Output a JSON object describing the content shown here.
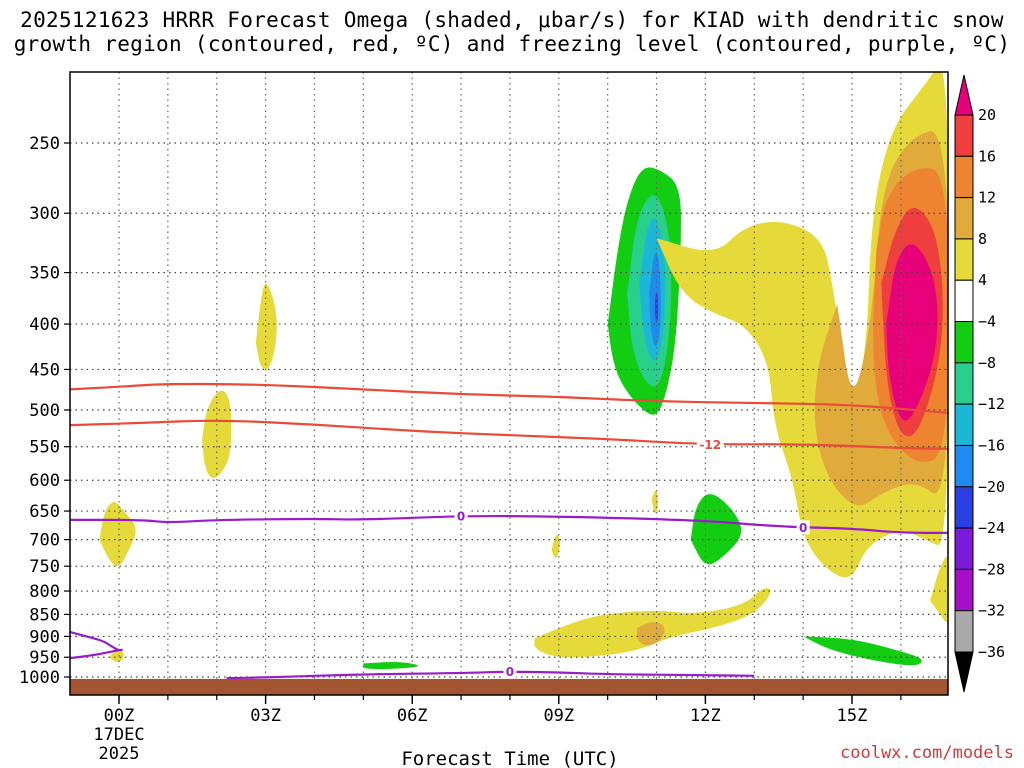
{
  "chart_data": {
    "type": "heatmap",
    "title_line1": "2025121623 HRRR Forecast Omega (shaded, μbar/s) for KIAD with dendritic snow",
    "title_line2": "growth region (contoured, red, ºC) and freezing level (contoured, purple, ºC)",
    "xlabel": "Forecast Time (UTC)",
    "ylabel": "",
    "credit": "coolwx.com/models",
    "x_ticks": [
      "00Z",
      "03Z",
      "06Z",
      "09Z",
      "12Z",
      "15Z"
    ],
    "x_ticks_hours": [
      0,
      3,
      6,
      9,
      12,
      15
    ],
    "x_first_date": "17DEC",
    "x_first_year": "2025",
    "xlim_hours": [
      -1,
      17
    ],
    "y_ticks": [
      "250",
      "300",
      "350",
      "400",
      "450",
      "500",
      "550",
      "600",
      "650",
      "700",
      "750",
      "800",
      "850",
      "900",
      "950",
      "1000"
    ],
    "y_ticks_hpa": [
      250,
      300,
      350,
      400,
      450,
      500,
      550,
      600,
      650,
      700,
      750,
      800,
      850,
      900,
      950,
      1000
    ],
    "ylim_hpa": [
      200,
      1025
    ],
    "y_scale": "log-pressure",
    "grid": true,
    "colorbar": {
      "labels": [
        "20",
        "16",
        "12",
        "8",
        "4",
        "−4",
        "−8",
        "−12",
        "−16",
        "−20",
        "−24",
        "−28",
        "−32",
        "−36"
      ],
      "levels": [
        20,
        16,
        12,
        8,
        4,
        -4,
        -8,
        -12,
        -16,
        -20,
        -24,
        -28,
        -32,
        -36
      ],
      "colors": [
        "#e8007a",
        "#ee3e3e",
        "#ee8430",
        "#e1ab3b",
        "#e6d93a",
        "#ffffff",
        "#13cd13",
        "#2bcf8c",
        "#1cb7d6",
        "#1f8bf0",
        "#2a3fe0",
        "#7b1ad8",
        "#a50fc9",
        "#aaaaaa",
        "#000000"
      ]
    },
    "omega_regions": [
      {
        "color": "#13cd13",
        "value": -8,
        "points": [
          [
            10.0,
            400
          ],
          [
            10.2,
            330
          ],
          [
            10.4,
            290
          ],
          [
            10.7,
            265
          ],
          [
            11.1,
            268
          ],
          [
            11.5,
            280
          ],
          [
            11.5,
            330
          ],
          [
            11.4,
            420
          ],
          [
            11.2,
            480
          ],
          [
            11.0,
            510
          ],
          [
            10.7,
            500
          ],
          [
            10.3,
            470
          ],
          [
            10.1,
            440
          ]
        ]
      },
      {
        "color": "#2bcf8c",
        "value": -12,
        "points": [
          [
            10.4,
            370
          ],
          [
            10.6,
            300
          ],
          [
            11.0,
            280
          ],
          [
            11.3,
            320
          ],
          [
            11.3,
            400
          ],
          [
            11.1,
            470
          ],
          [
            10.8,
            470
          ],
          [
            10.5,
            430
          ]
        ]
      },
      {
        "color": "#1cb7d6",
        "value": -16,
        "points": [
          [
            10.65,
            360
          ],
          [
            10.8,
            310
          ],
          [
            11.0,
            300
          ],
          [
            11.2,
            340
          ],
          [
            11.15,
            410
          ],
          [
            11.0,
            445
          ],
          [
            10.8,
            430
          ],
          [
            10.7,
            395
          ]
        ]
      },
      {
        "color": "#1f8bf0",
        "value": -20,
        "points": [
          [
            10.85,
            370
          ],
          [
            10.95,
            330
          ],
          [
            11.05,
            335
          ],
          [
            11.1,
            380
          ],
          [
            11.05,
            420
          ],
          [
            10.95,
            425
          ],
          [
            10.87,
            400
          ]
        ]
      },
      {
        "color": "#2a3fe0",
        "value": -24,
        "points": [
          [
            10.97,
            375
          ],
          [
            11.0,
            365
          ],
          [
            11.03,
            375
          ],
          [
            11.03,
            395
          ],
          [
            11.0,
            400
          ],
          [
            10.97,
            392
          ]
        ]
      },
      {
        "color": "#e6d93a",
        "value": 4,
        "points": [
          [
            11.0,
            320
          ],
          [
            12.2,
            335
          ],
          [
            12.8,
            310
          ],
          [
            13.6,
            305
          ],
          [
            14.4,
            320
          ],
          [
            14.6,
            360
          ],
          [
            15.0,
            500
          ],
          [
            15.3,
            430
          ],
          [
            15.4,
            300
          ],
          [
            15.8,
            240
          ],
          [
            16.5,
            215
          ],
          [
            17.0,
            195
          ],
          [
            17.0,
            720
          ],
          [
            16.5,
            700
          ],
          [
            16.0,
            680
          ],
          [
            15.3,
            710
          ],
          [
            15.0,
            780
          ],
          [
            14.5,
            760
          ],
          [
            14.0,
            700
          ],
          [
            13.8,
            600
          ],
          [
            13.4,
            520
          ],
          [
            13.3,
            440
          ],
          [
            12.8,
            400
          ],
          [
            12.2,
            390
          ],
          [
            11.5,
            370
          ]
        ]
      },
      {
        "color": "#e1ab3b",
        "value": 8,
        "points": [
          [
            14.7,
            380
          ],
          [
            15.0,
            500
          ],
          [
            15.4,
            400
          ],
          [
            15.6,
            280
          ],
          [
            16.2,
            245
          ],
          [
            17.0,
            240
          ],
          [
            17.0,
            640
          ],
          [
            16.3,
            600
          ],
          [
            15.6,
            620
          ],
          [
            15.1,
            650
          ],
          [
            14.5,
            600
          ],
          [
            14.2,
            520
          ],
          [
            14.3,
            440
          ]
        ]
      },
      {
        "color": "#ee8430",
        "value": 12,
        "points": [
          [
            15.5,
            330
          ],
          [
            15.7,
            285
          ],
          [
            16.3,
            265
          ],
          [
            17.0,
            270
          ],
          [
            17.0,
            560
          ],
          [
            16.3,
            580
          ],
          [
            15.6,
            520
          ],
          [
            15.4,
            430
          ]
        ]
      },
      {
        "color": "#ee3e3e",
        "value": 16,
        "points": [
          [
            15.6,
            360
          ],
          [
            15.9,
            310
          ],
          [
            16.3,
            290
          ],
          [
            16.8,
            320
          ],
          [
            16.9,
            420
          ],
          [
            16.4,
            530
          ],
          [
            16.0,
            540
          ],
          [
            15.7,
            470
          ]
        ]
      },
      {
        "color": "#e8007a",
        "value": 20,
        "points": [
          [
            15.7,
            400
          ],
          [
            15.9,
            335
          ],
          [
            16.3,
            320
          ],
          [
            16.75,
            360
          ],
          [
            16.75,
            430
          ],
          [
            16.3,
            505
          ],
          [
            16.0,
            520
          ],
          [
            15.75,
            460
          ]
        ]
      },
      {
        "color": "#e6d93a",
        "value": 4,
        "points": [
          [
            2.8,
            420
          ],
          [
            2.9,
            375
          ],
          [
            3.0,
            355
          ],
          [
            3.2,
            380
          ],
          [
            3.25,
            410
          ],
          [
            3.1,
            450
          ],
          [
            2.9,
            450
          ]
        ]
      },
      {
        "color": "#e6d93a",
        "value": 4,
        "points": [
          [
            1.7,
            540
          ],
          [
            1.8,
            495
          ],
          [
            2.1,
            470
          ],
          [
            2.3,
            490
          ],
          [
            2.3,
            560
          ],
          [
            2.1,
            590
          ],
          [
            1.9,
            600
          ],
          [
            1.75,
            580
          ]
        ]
      },
      {
        "color": "#e6d93a",
        "value": 4,
        "points": [
          [
            -0.4,
            700
          ],
          [
            -0.3,
            650
          ],
          [
            -0.1,
            630
          ],
          [
            0.1,
            650
          ],
          [
            0.4,
            680
          ],
          [
            0.2,
            720
          ],
          [
            0.0,
            755
          ],
          [
            -0.2,
            740
          ]
        ]
      },
      {
        "color": "#e6d93a",
        "value": 4,
        "points": [
          [
            -0.2,
            950
          ],
          [
            -0.1,
            935
          ],
          [
            0.1,
            935
          ],
          [
            0.1,
            955
          ],
          [
            -0.05,
            965
          ]
        ]
      },
      {
        "color": "#e6d93a",
        "value": 4,
        "points": [
          [
            8.5,
            905
          ],
          [
            9.0,
            880
          ],
          [
            9.8,
            850
          ],
          [
            11.0,
            840
          ],
          [
            11.8,
            850
          ],
          [
            12.8,
            830
          ],
          [
            13.2,
            790
          ],
          [
            13.4,
            800
          ],
          [
            13.0,
            850
          ],
          [
            12.2,
            880
          ],
          [
            11.3,
            900
          ],
          [
            10.6,
            935
          ],
          [
            9.6,
            950
          ],
          [
            8.9,
            950
          ],
          [
            8.5,
            930
          ]
        ]
      },
      {
        "color": "#e1ab3b",
        "value": 8,
        "points": [
          [
            10.6,
            880
          ],
          [
            10.9,
            865
          ],
          [
            11.2,
            875
          ],
          [
            11.1,
            910
          ],
          [
            10.8,
            925
          ],
          [
            10.6,
            910
          ]
        ]
      },
      {
        "color": "#e6d93a",
        "value": 4,
        "points": [
          [
            8.85,
            720
          ],
          [
            8.95,
            685
          ],
          [
            9.05,
            705
          ],
          [
            8.95,
            740
          ]
        ]
      },
      {
        "color": "#e6d93a",
        "value": 4,
        "points": [
          [
            10.9,
            630
          ],
          [
            11.0,
            610
          ],
          [
            11.05,
            640
          ],
          [
            10.97,
            660
          ]
        ]
      },
      {
        "color": "#e6d93a",
        "value": 4,
        "points": [
          [
            16.6,
            820
          ],
          [
            16.8,
            750
          ],
          [
            17.0,
            720
          ],
          [
            17.0,
            880
          ],
          [
            16.8,
            850
          ]
        ]
      },
      {
        "color": "#13cd13",
        "value": -8,
        "points": [
          [
            11.7,
            700
          ],
          [
            11.8,
            640
          ],
          [
            12.1,
            615
          ],
          [
            12.6,
            650
          ],
          [
            12.8,
            690
          ],
          [
            12.4,
            730
          ],
          [
            12.0,
            755
          ]
        ]
      },
      {
        "color": "#13cd13",
        "value": -8,
        "points": [
          [
            14.0,
            900
          ],
          [
            15.0,
            905
          ],
          [
            16.0,
            935
          ],
          [
            16.5,
            955
          ],
          [
            16.3,
            975
          ],
          [
            15.3,
            955
          ],
          [
            14.5,
            930
          ]
        ]
      },
      {
        "color": "#13cd13",
        "value": -8,
        "points": [
          [
            5.0,
            965
          ],
          [
            5.8,
            960
          ],
          [
            6.3,
            975
          ],
          [
            5.0,
            982
          ]
        ]
      }
    ],
    "temperature_contours": [
      {
        "label": "-12",
        "color": "#ea4a3a",
        "label_at_hour": 12.1,
        "points": [
          [
            -1,
            520
          ],
          [
            0.5,
            517
          ],
          [
            2,
            513
          ],
          [
            4,
            519
          ],
          [
            6,
            528
          ],
          [
            8,
            534
          ],
          [
            10,
            539
          ],
          [
            12,
            547
          ],
          [
            14,
            546
          ],
          [
            16,
            552
          ],
          [
            17,
            553
          ]
        ]
      },
      {
        "label": "",
        "color": "#ea4a3a",
        "points": [
          [
            -1,
            474
          ],
          [
            0.2,
            470
          ],
          [
            1,
            467
          ],
          [
            3,
            468
          ],
          [
            5,
            474
          ],
          [
            7,
            480
          ],
          [
            9,
            483
          ],
          [
            11,
            489
          ],
          [
            13,
            491
          ],
          [
            15,
            493
          ],
          [
            17,
            504
          ]
        ]
      },
      {
        "label": "0",
        "color": "#9a1bcc",
        "label_at_hour": 7.0,
        "points": [
          [
            -1,
            665
          ],
          [
            0.5,
            665
          ],
          [
            1.0,
            670
          ],
          [
            2.0,
            665
          ],
          [
            4.0,
            663
          ],
          [
            5.0,
            665
          ],
          [
            7.0,
            658
          ],
          [
            9.0,
            659
          ],
          [
            12.0,
            666
          ],
          [
            13.5,
            677
          ],
          [
            15.0,
            680
          ],
          [
            16.0,
            688
          ],
          [
            17.0,
            688
          ]
        ]
      },
      {
        "label": "0",
        "color": "#9a1bcc",
        "label_at_hour": 14.0,
        "points": []
      },
      {
        "label": "0",
        "color": "#9a1bcc",
        "label_at_hour": 8.0,
        "points": [
          [
            2.2,
            1003
          ],
          [
            3.0,
            1001
          ],
          [
            5.0,
            993
          ],
          [
            7.0,
            990
          ],
          [
            8.0,
            986
          ],
          [
            9.0,
            988
          ],
          [
            10.0,
            993
          ],
          [
            12.0,
            995
          ],
          [
            13.0,
            997
          ]
        ]
      },
      {
        "label": "",
        "color": "#9a1bcc",
        "points": [
          [
            -1,
            890
          ],
          [
            -0.5,
            905
          ],
          [
            -0.3,
            912
          ],
          [
            0.0,
            935
          ],
          [
            0.1,
            930
          ],
          [
            -0.5,
            945
          ],
          [
            -1,
            952
          ]
        ]
      }
    ],
    "terrain": {
      "color": "#a35531",
      "top_hpa": 1005
    }
  }
}
